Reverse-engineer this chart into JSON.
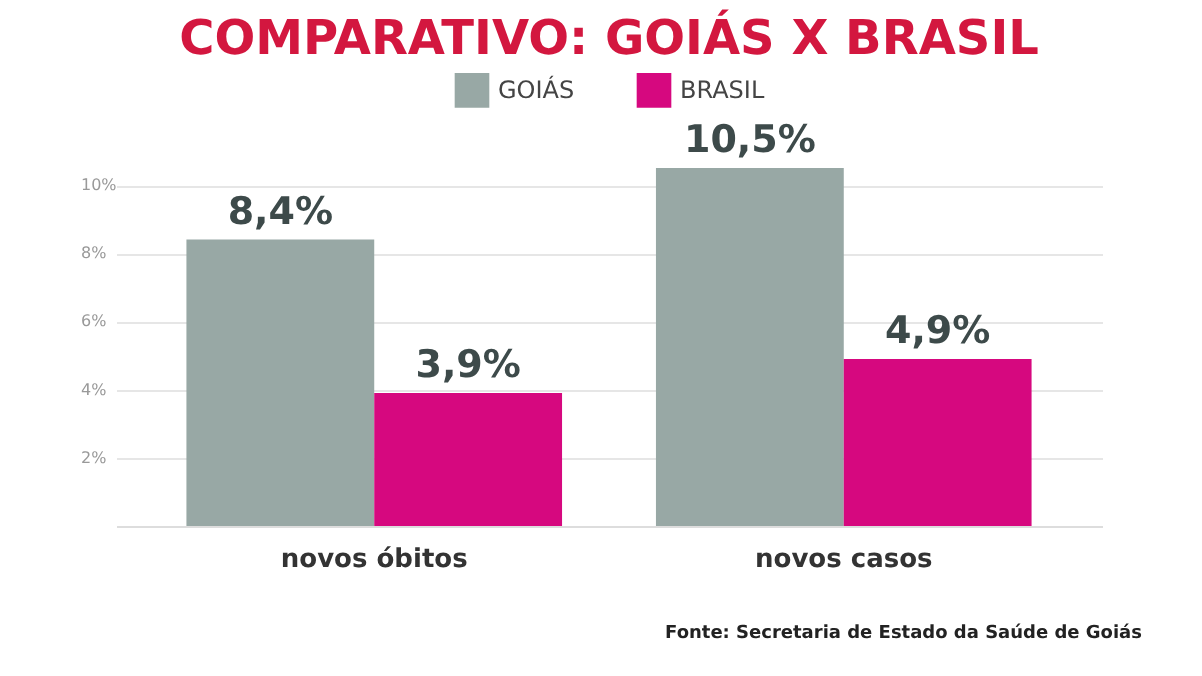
{
  "chart_data": {
    "type": "bar",
    "title": "COMPARATIVO: GOIÁS X BRASIL",
    "categories": [
      "novos óbitos",
      "novos casos"
    ],
    "series": [
      {
        "name": "GOIÁS",
        "color": "#98a8a5",
        "values": [
          8.4,
          10.5
        ],
        "value_labels": [
          "8,4%",
          "10,5%"
        ]
      },
      {
        "name": "BRASIL",
        "color": "#d6087f",
        "values": [
          3.9,
          4.9
        ],
        "value_labels": [
          "3,9%",
          "4,9%"
        ]
      }
    ],
    "ylim": [
      0,
      10.5
    ],
    "yticks": [
      {
        "value": 2,
        "label": "2%"
      },
      {
        "value": 4,
        "label": "4%"
      },
      {
        "value": 6,
        "label": "6%"
      },
      {
        "value": 8,
        "label": "8%"
      },
      {
        "value": 10,
        "label": "10%"
      }
    ],
    "grid": "y",
    "legend": "top",
    "annotations": [
      "Fonte: Secretaria de Estado da Saúde de Goiás"
    ]
  }
}
